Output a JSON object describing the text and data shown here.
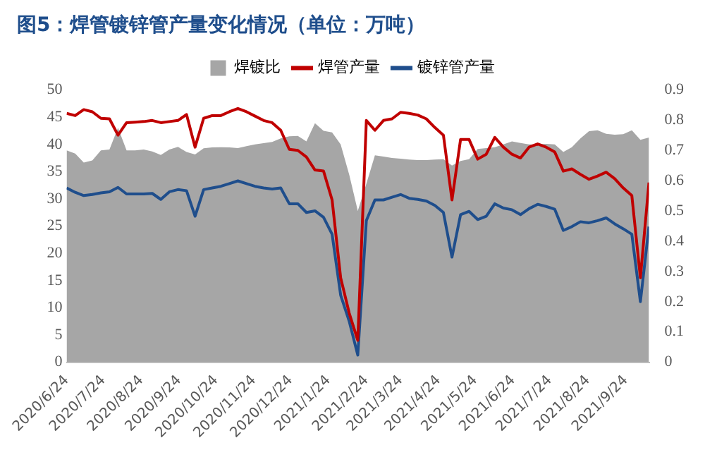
{
  "chart_data": {
    "type": "line",
    "title": "图5：焊管镀锌管产量变化情况（单位：万吨）",
    "x": [
      "2020-06-24",
      "2020-07-01",
      "2020-07-08",
      "2020-07-15",
      "2020-07-22",
      "2020-07-29",
      "2020-08-05",
      "2020-08-12",
      "2020-08-19",
      "2020-08-26",
      "2020-09-02",
      "2020-09-09",
      "2020-09-16",
      "2020-09-23",
      "2020-09-30",
      "2020-10-07",
      "2020-10-14",
      "2020-10-21",
      "2020-10-28",
      "2020-11-04",
      "2020-11-11",
      "2020-11-18",
      "2020-11-25",
      "2020-12-02",
      "2020-12-09",
      "2020-12-16",
      "2020-12-23",
      "2020-12-30",
      "2021-01-06",
      "2021-01-13",
      "2021-01-20",
      "2021-01-27",
      "2021-02-03",
      "2021-02-10",
      "2021-02-17",
      "2021-02-24",
      "2021-03-03",
      "2021-03-10",
      "2021-03-17",
      "2021-03-24",
      "2021-03-31",
      "2021-04-07",
      "2021-04-14",
      "2021-04-21",
      "2021-04-28",
      "2021-05-05",
      "2021-05-12",
      "2021-05-19",
      "2021-05-26",
      "2021-06-02",
      "2021-06-09",
      "2021-06-16",
      "2021-06-23",
      "2021-06-30",
      "2021-07-07",
      "2021-07-14",
      "2021-07-21",
      "2021-07-28",
      "2021-08-04",
      "2021-08-11",
      "2021-08-18",
      "2021-08-25",
      "2021-09-01",
      "2021-09-08",
      "2021-09-15",
      "2021-09-22",
      "2021-09-29",
      "2021-10-06",
      "2021-10-13"
    ],
    "series": [
      {
        "name": "焊镀比",
        "type": "area",
        "axis": "y2",
        "color": "#a6a6a6",
        "values": [
          0.7,
          0.69,
          0.66,
          0.667,
          0.7,
          0.703,
          0.775,
          0.7,
          0.7,
          0.703,
          0.697,
          0.685,
          0.703,
          0.712,
          0.695,
          0.687,
          0.707,
          0.71,
          0.711,
          0.71,
          0.708,
          0.714,
          0.72,
          0.724,
          0.728,
          0.74,
          0.747,
          0.748,
          0.73,
          0.79,
          0.765,
          0.76,
          0.72,
          0.62,
          0.5,
          0.59,
          0.684,
          0.68,
          0.675,
          0.673,
          0.67,
          0.668,
          0.668,
          0.67,
          0.671,
          0.65,
          0.665,
          0.671,
          0.705,
          0.708,
          0.711,
          0.72,
          0.73,
          0.725,
          0.72,
          0.72,
          0.722,
          0.72,
          0.695,
          0.711,
          0.74,
          0.764,
          0.767,
          0.755,
          0.752,
          0.754,
          0.767,
          0.735,
          0.743
        ]
      },
      {
        "name": "焊管产量",
        "color": "#c00000",
        "values": [
          45.7,
          45.3,
          46.4,
          46,
          44.8,
          44.7,
          41.7,
          44,
          44.1,
          44.2,
          44.4,
          44,
          44.2,
          44.4,
          45.5,
          39.5,
          44.8,
          45.3,
          45.3,
          46,
          46.6,
          46,
          45.2,
          44.4,
          44,
          42.6,
          39.1,
          38.9,
          37.7,
          35.3,
          35.1,
          29.8,
          15.5,
          9,
          4,
          44.4,
          42.6,
          44.4,
          44.7,
          45.9,
          45.7,
          45.4,
          44.7,
          43.1,
          41.7,
          29.8,
          40.9,
          40.9,
          37.3,
          38.2,
          41.3,
          39.5,
          38.2,
          37.5,
          39.5,
          40.1,
          39.5,
          38.6,
          35.1,
          35.5,
          34.5,
          33.6,
          34.2,
          34.9,
          33.7,
          32,
          30.6,
          15.5,
          33
        ]
      },
      {
        "name": "镀锌管产量",
        "color": "#1f4e8c",
        "values": [
          32,
          31.2,
          30.6,
          30.8,
          31.1,
          31.3,
          32.1,
          30.9,
          30.9,
          30.9,
          31,
          29.9,
          31.3,
          31.7,
          31.5,
          26.8,
          31.7,
          32,
          32.3,
          32.8,
          33.3,
          32.8,
          32.3,
          32,
          31.8,
          32,
          29.1,
          29.1,
          27.5,
          27.8,
          26.6,
          23.5,
          12.3,
          7.5,
          1.3,
          26,
          29.8,
          29.8,
          30.3,
          30.8,
          30.1,
          29.9,
          29.6,
          28.8,
          27.5,
          19.3,
          27.1,
          27.7,
          26.2,
          26.8,
          29.1,
          28.3,
          28,
          27.1,
          28.2,
          29,
          28.6,
          28.1,
          24.2,
          24.9,
          25.8,
          25.6,
          26,
          26.5,
          25.4,
          24.5,
          23.5,
          11.1,
          24.9
        ]
      }
    ],
    "xlim": [
      "2020-06-24",
      "2021-10-13"
    ],
    "xticks": [
      {
        "value": "2020-06-24",
        "label": "2020/6/24"
      },
      {
        "value": "2020-07-24",
        "label": "2020/7/24"
      },
      {
        "value": "2020-08-24",
        "label": "2020/8/24"
      },
      {
        "value": "2020-09-24",
        "label": "2020/9/24"
      },
      {
        "value": "2020-10-24",
        "label": "2020/10/24"
      },
      {
        "value": "2020-11-24",
        "label": "2020/11/24"
      },
      {
        "value": "2020-12-24",
        "label": "2020/12/24"
      },
      {
        "value": "2021-01-24",
        "label": "2021/1/24"
      },
      {
        "value": "2021-02-24",
        "label": "2021/2/24"
      },
      {
        "value": "2021-03-24",
        "label": "2021/3/24"
      },
      {
        "value": "2021-04-24",
        "label": "2021/4/24"
      },
      {
        "value": "2021-05-24",
        "label": "2021/5/24"
      },
      {
        "value": "2021-06-24",
        "label": "2021/6/24"
      },
      {
        "value": "2021-07-24",
        "label": "2021/7/24"
      },
      {
        "value": "2021-08-24",
        "label": "2021/8/24"
      },
      {
        "value": "2021-09-24",
        "label": "2021/9/24"
      }
    ],
    "ylim": [
      0,
      50
    ],
    "yticks": [
      0,
      5,
      10,
      15,
      20,
      25,
      30,
      35,
      40,
      45,
      50
    ],
    "y2lim": [
      0,
      0.9
    ],
    "y2ticks": [
      0,
      0.1,
      0.2,
      0.3,
      0.4,
      0.5,
      0.6,
      0.7,
      0.8,
      0.9
    ],
    "grid": false,
    "legend": "top",
    "marker": "none",
    "line_style": "solid"
  }
}
